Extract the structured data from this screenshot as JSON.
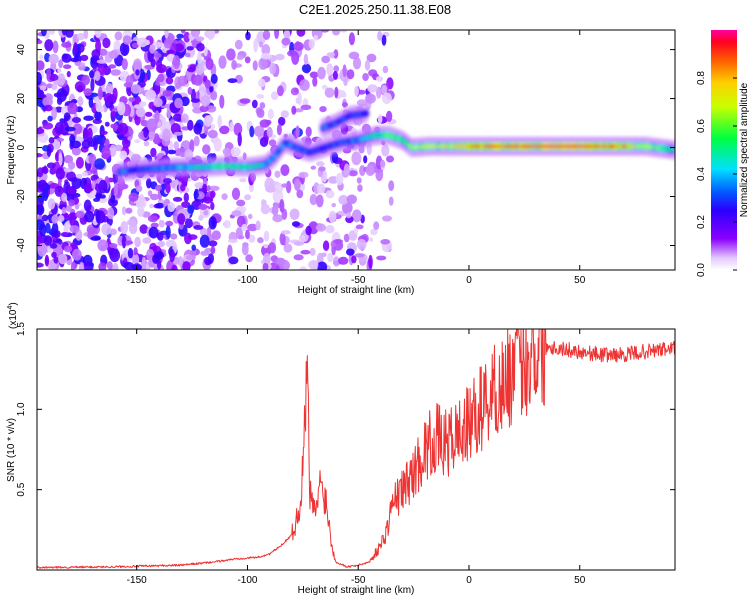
{
  "title": "C2E1.2025.250.11.38.E08",
  "chart_data": [
    {
      "type": "heatmap",
      "name": "spectrogram",
      "xlabel": "Height of straight line (km)",
      "ylabel": "Frequency (Hz)",
      "xlim": [
        -195,
        93
      ],
      "ylim": [
        -50,
        48
      ],
      "xticks": [
        -150,
        -100,
        -50,
        0,
        50
      ],
      "yticks": [
        -40,
        -20,
        0,
        20,
        40
      ],
      "colorbar": {
        "label": "Normalized spectral amplitude",
        "range": [
          0,
          1
        ],
        "ticks": [
          0.0,
          0.2,
          0.4,
          0.6,
          0.8
        ]
      },
      "ridge": [
        {
          "x": -158,
          "freq": -10,
          "amp": 0.35
        },
        {
          "x": -150,
          "freq": -9,
          "amp": 0.3
        },
        {
          "x": -140,
          "freq": -8.5,
          "amp": 0.35
        },
        {
          "x": -130,
          "freq": -8,
          "amp": 0.4
        },
        {
          "x": -120,
          "freq": -8,
          "amp": 0.5
        },
        {
          "x": -110,
          "freq": -7.5,
          "amp": 0.55
        },
        {
          "x": -100,
          "freq": -8,
          "amp": 0.55
        },
        {
          "x": -92,
          "freq": -7,
          "amp": 0.4
        },
        {
          "x": -88,
          "freq": -4,
          "amp": 0.35
        },
        {
          "x": -83,
          "freq": 2,
          "amp": 0.35
        },
        {
          "x": -78,
          "freq": 0,
          "amp": 0.35
        },
        {
          "x": -72,
          "freq": -2,
          "amp": 0.3
        },
        {
          "x": -65,
          "freq": 0,
          "amp": 0.3
        },
        {
          "x": -58,
          "freq": 2,
          "amp": 0.3
        },
        {
          "x": -50,
          "freq": 3,
          "amp": 0.35
        },
        {
          "x": -42,
          "freq": 5,
          "amp": 0.5
        },
        {
          "x": -36,
          "freq": 5,
          "amp": 0.6
        },
        {
          "x": -30,
          "freq": 3,
          "amp": 0.55
        },
        {
          "x": -26,
          "freq": 0,
          "amp": 0.6
        },
        {
          "x": -18,
          "freq": 0.5,
          "amp": 0.7
        },
        {
          "x": -10,
          "freq": 0.5,
          "amp": 0.7
        },
        {
          "x": 0,
          "freq": 0.5,
          "amp": 0.85
        },
        {
          "x": 20,
          "freq": 0.5,
          "amp": 0.95
        },
        {
          "x": 40,
          "freq": 0.5,
          "amp": 1.0
        },
        {
          "x": 60,
          "freq": 0.5,
          "amp": 0.95
        },
        {
          "x": 80,
          "freq": 0.5,
          "amp": 0.7
        },
        {
          "x": 93,
          "freq": -1,
          "amp": 0.45
        }
      ],
      "side_branch": [
        {
          "x": -66,
          "freq": 8,
          "amp": 0.35
        },
        {
          "x": -60,
          "freq": 10,
          "amp": 0.3
        },
        {
          "x": -54,
          "freq": 13,
          "amp": 0.3
        },
        {
          "x": -46,
          "freq": 14,
          "amp": 0.3
        }
      ]
    },
    {
      "type": "line",
      "name": "snr",
      "xlabel": "Height of straight line (km)",
      "ylabel": "SNR (10 * v/v)",
      "scale_label": "(x10",
      "scale_exponent": "4",
      "xlim": [
        -195,
        93
      ],
      "ylim": [
        0,
        1.5
      ],
      "xticks": [
        -150,
        -100,
        -50,
        0,
        50
      ],
      "yticks": [
        0.5,
        1.0,
        1.5
      ],
      "series": [
        {
          "name": "SNR",
          "color": "#ee3333",
          "x": [
            -195,
            -160,
            -130,
            -115,
            -105,
            -95,
            -90,
            -85,
            -80,
            -77,
            -75,
            -74,
            -73,
            -72,
            -70,
            -68,
            -67,
            -66,
            -64,
            -62,
            -60,
            -55,
            -50,
            -45,
            -40,
            -37,
            -35,
            -30,
            -25,
            -20,
            -15,
            -10,
            -5,
            0,
            5,
            10,
            15,
            20,
            25,
            30,
            35,
            40,
            50,
            60,
            70,
            80,
            93
          ],
          "values": [
            0.015,
            0.02,
            0.03,
            0.05,
            0.07,
            0.08,
            0.1,
            0.15,
            0.22,
            0.35,
            0.6,
            0.95,
            1.3,
            0.5,
            0.35,
            0.45,
            0.55,
            0.5,
            0.4,
            0.15,
            0.05,
            0.02,
            0.03,
            0.05,
            0.15,
            0.25,
            0.4,
            0.5,
            0.6,
            0.75,
            0.82,
            0.78,
            0.85,
            0.9,
            1.0,
            1.1,
            1.15,
            1.25,
            1.3,
            1.38,
            1.4,
            1.38,
            1.36,
            1.34,
            1.34,
            1.36,
            1.38
          ]
        }
      ]
    }
  ]
}
